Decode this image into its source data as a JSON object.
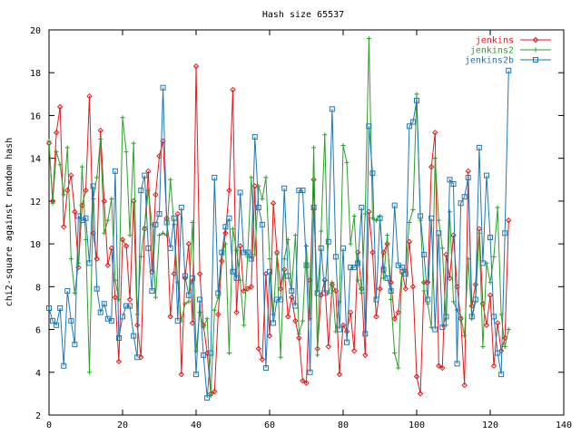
{
  "chart_data": {
    "type": "line",
    "title": "Hash size 65537",
    "xlabel": "",
    "ylabel": "chi2-square against random hash",
    "xlim": [
      0,
      140
    ],
    "ylim": [
      2,
      20
    ],
    "xticks": [
      0,
      20,
      40,
      60,
      80,
      100,
      120,
      140
    ],
    "yticks": [
      2,
      4,
      6,
      8,
      10,
      12,
      14,
      16,
      18,
      20
    ],
    "xtick_labels": [
      "0",
      "20",
      "40",
      "60",
      "80",
      "100",
      "120",
      "140"
    ],
    "ytick_labels": [
      "2",
      "4",
      "6",
      "8",
      "10",
      "12",
      "14",
      "16",
      "18",
      "20"
    ],
    "grid": false,
    "legend_position": "top-right",
    "series": [
      {
        "name": "jenkins",
        "color": "#e41a1c",
        "marker": "diamond",
        "x": [
          0,
          1,
          2,
          3,
          4,
          5,
          6,
          7,
          8,
          9,
          10,
          11,
          12,
          13,
          14,
          15,
          16,
          17,
          18,
          19,
          20,
          21,
          22,
          23,
          24,
          25,
          26,
          27,
          28,
          29,
          30,
          31,
          32,
          33,
          34,
          35,
          36,
          37,
          38,
          39,
          40,
          41,
          42,
          43,
          44,
          45,
          46,
          47,
          48,
          49,
          50,
          51,
          52,
          53,
          54,
          55,
          56,
          57,
          58,
          59,
          60,
          61,
          62,
          63,
          64,
          65,
          66,
          67,
          68,
          69,
          70,
          71,
          72,
          73,
          74,
          75,
          76,
          77,
          78,
          79,
          80,
          81,
          82,
          83,
          84,
          85,
          86,
          87,
          88,
          89,
          90,
          91,
          92,
          93,
          94,
          95,
          96,
          97,
          98,
          99,
          100,
          101,
          102,
          103,
          104,
          105,
          106,
          107,
          108,
          109,
          110,
          111,
          112,
          113,
          114,
          115,
          116,
          117,
          118,
          119,
          120,
          121,
          122,
          123,
          124,
          125
        ],
        "values": [
          14.7,
          12,
          15.2,
          16.4,
          10.8,
          12.5,
          13.2,
          11.5,
          8.9,
          11.8,
          12.5,
          16.9,
          10.5,
          9.3,
          15.3,
          12,
          9,
          9.8,
          7.5,
          4.5,
          10.2,
          9.9,
          7.4,
          12,
          6.2,
          4.7,
          10.7,
          13.4,
          8.7,
          12.3,
          14.1,
          14.8,
          11.2,
          6.6,
          8.6,
          11.4,
          3.9,
          8.4,
          10,
          6.3,
          18.3,
          8.6,
          6.2,
          4.9,
          3,
          3.1,
          6.7,
          9.2,
          10.5,
          12.5,
          17.2,
          6.8,
          9.9,
          7.8,
          7.9,
          8,
          12.7,
          5.1,
          4.6,
          8.6,
          5.7,
          11.9,
          9.6,
          7.9,
          8.8,
          6.6,
          7.5,
          6.4,
          5.6,
          3.6,
          3.5,
          8.3,
          13,
          5.1,
          7.6,
          8.3,
          5.2,
          8.1,
          7.8,
          3.9,
          6.2,
          5.9,
          6.8,
          5,
          9.6,
          7.9,
          4.8,
          11.5,
          9.6,
          6.6,
          7.9,
          9.6,
          10,
          8.2,
          6.5,
          6.8,
          8.7,
          7.9,
          10.1,
          8,
          3.8,
          3,
          8.2,
          8.2,
          13.6,
          15.2,
          4.3,
          4.2,
          9.5,
          8.4,
          10.4,
          8,
          6.5,
          3.4,
          13.4,
          7.1,
          8.1,
          10.7,
          7.2,
          6.2,
          7.6,
          4.3,
          6.3,
          5,
          5.6,
          11.1
        ]
      },
      {
        "name": "jenkins2",
        "color": "#2ca02c",
        "marker": "plus",
        "x": [
          0,
          1,
          2,
          3,
          4,
          5,
          6,
          7,
          8,
          9,
          10,
          11,
          12,
          13,
          14,
          15,
          16,
          17,
          18,
          19,
          20,
          21,
          22,
          23,
          24,
          25,
          26,
          27,
          28,
          29,
          30,
          31,
          32,
          33,
          34,
          35,
          36,
          37,
          38,
          39,
          40,
          41,
          42,
          43,
          44,
          45,
          46,
          47,
          48,
          49,
          50,
          51,
          52,
          53,
          54,
          55,
          56,
          57,
          58,
          59,
          60,
          61,
          62,
          63,
          64,
          65,
          66,
          67,
          68,
          69,
          70,
          71,
          72,
          73,
          74,
          75,
          76,
          77,
          78,
          79,
          80,
          81,
          82,
          83,
          84,
          85,
          86,
          87,
          88,
          89,
          90,
          91,
          92,
          93,
          94,
          95,
          96,
          97,
          98,
          99,
          100,
          101,
          102,
          103,
          104,
          105,
          106,
          107,
          108,
          109,
          110,
          111,
          112,
          113,
          114,
          115,
          116,
          117,
          118,
          119,
          120,
          121,
          122,
          123,
          124,
          125
        ],
        "values": [
          14.8,
          11.9,
          14.3,
          13.7,
          12.3,
          14.5,
          9.3,
          7.7,
          9.1,
          13.6,
          10.2,
          4,
          12.1,
          13.1,
          14.9,
          10.5,
          11.1,
          12.1,
          8.3,
          7.4,
          15.9,
          14.3,
          10.4,
          14.7,
          6.7,
          9.4,
          10.8,
          12.5,
          10.9,
          7.5,
          10.4,
          10.5,
          10.4,
          13,
          10.9,
          8.2,
          6.4,
          7.2,
          7.3,
          11,
          5,
          6.8,
          6.1,
          6.5,
          2.9,
          6.9,
          7.5,
          9.5,
          10,
          4.9,
          10.7,
          9.7,
          8.3,
          6.2,
          9.4,
          13.1,
          9.5,
          12.7,
          12.1,
          13.1,
          9.3,
          6.7,
          9.5,
          4.7,
          9.3,
          10.2,
          7.9,
          10.4,
          5.8,
          6.4,
          9.9,
          6.5,
          14.5,
          4.8,
          10.6,
          15.1,
          7.7,
          8.2,
          5.9,
          7.3,
          14.6,
          13.8,
          10,
          11.3,
          8.3,
          7.7,
          11.4,
          19.6,
          11.2,
          11.1,
          11.3,
          8.4,
          10.4,
          7.4,
          4.9,
          4.2,
          8.6,
          8.8,
          11,
          11.6,
          17,
          11.1,
          7.8,
          7.2,
          6.1,
          14,
          11.1,
          9.8,
          6.2,
          11.5,
          7.3,
          6.9,
          6.6,
          5.7,
          9.3,
          6.5,
          7.3,
          10.5,
          5.2,
          9.1,
          8.2,
          9.4,
          11.7,
          6.7,
          5.2,
          6
        ]
      },
      {
        "name": "jenkins2b",
        "color": "#1f77b4",
        "marker": "square",
        "x": [
          0,
          1,
          2,
          3,
          4,
          5,
          6,
          7,
          8,
          9,
          10,
          11,
          12,
          13,
          14,
          15,
          16,
          17,
          18,
          19,
          20,
          21,
          22,
          23,
          24,
          25,
          26,
          27,
          28,
          29,
          30,
          31,
          32,
          33,
          34,
          35,
          36,
          37,
          38,
          39,
          40,
          41,
          42,
          43,
          44,
          45,
          46,
          47,
          48,
          49,
          50,
          51,
          52,
          53,
          54,
          55,
          56,
          57,
          58,
          59,
          60,
          61,
          62,
          63,
          64,
          65,
          66,
          67,
          68,
          69,
          70,
          71,
          72,
          73,
          74,
          75,
          76,
          77,
          78,
          79,
          80,
          81,
          82,
          83,
          84,
          85,
          86,
          87,
          88,
          89,
          90,
          91,
          92,
          93,
          94,
          95,
          96,
          97,
          98,
          99,
          100,
          101,
          102,
          103,
          104,
          105,
          106,
          107,
          108,
          109,
          110,
          111,
          112,
          113,
          114,
          115,
          116,
          117,
          118,
          119,
          120,
          121,
          122,
          123,
          124,
          125
        ],
        "values": [
          7,
          6.4,
          6.2,
          7,
          4.3,
          7.8,
          6.4,
          5.3,
          11.3,
          11.1,
          11.2,
          9.1,
          12.7,
          7.9,
          6.8,
          7.2,
          6.5,
          6.4,
          13.4,
          5.6,
          6.6,
          7.1,
          7.1,
          5.7,
          4.7,
          12.5,
          13.2,
          9.8,
          7.8,
          10.9,
          11.4,
          17.3,
          11,
          9.8,
          11.2,
          6.4,
          11.7,
          8.5,
          7.6,
          8.4,
          3.9,
          7.4,
          4.8,
          2.8,
          4.9,
          13.1,
          7.7,
          9.6,
          10.8,
          11.2,
          8.7,
          8.4,
          12.4,
          9.6,
          9.6,
          9.3,
          15,
          11.7,
          10.9,
          4.2,
          8.7,
          6.3,
          7.4,
          7.4,
          12.6,
          8.5,
          7.8,
          7.1,
          12.5,
          12.5,
          9,
          4,
          11.7,
          7.7,
          9.8,
          7.7,
          10.1,
          16.3,
          9.4,
          6,
          9.8,
          5.4,
          8.9,
          8.9,
          9.1,
          11.7,
          5.8,
          15.5,
          13.3,
          7.4,
          11.2,
          8.8,
          8.4,
          7.8,
          11.8,
          9,
          8.9,
          8.6,
          15.5,
          15.7,
          16.7,
          11.3,
          9.5,
          7.4,
          11.2,
          6,
          10.5,
          6.1,
          6.6,
          13,
          12.8,
          4.4,
          11.9,
          12.2,
          13.1,
          6.6,
          7.4,
          14.5,
          9.1,
          13.2,
          10.3,
          6.6,
          4.9,
          3.9,
          10.5,
          18.1
        ]
      }
    ]
  }
}
